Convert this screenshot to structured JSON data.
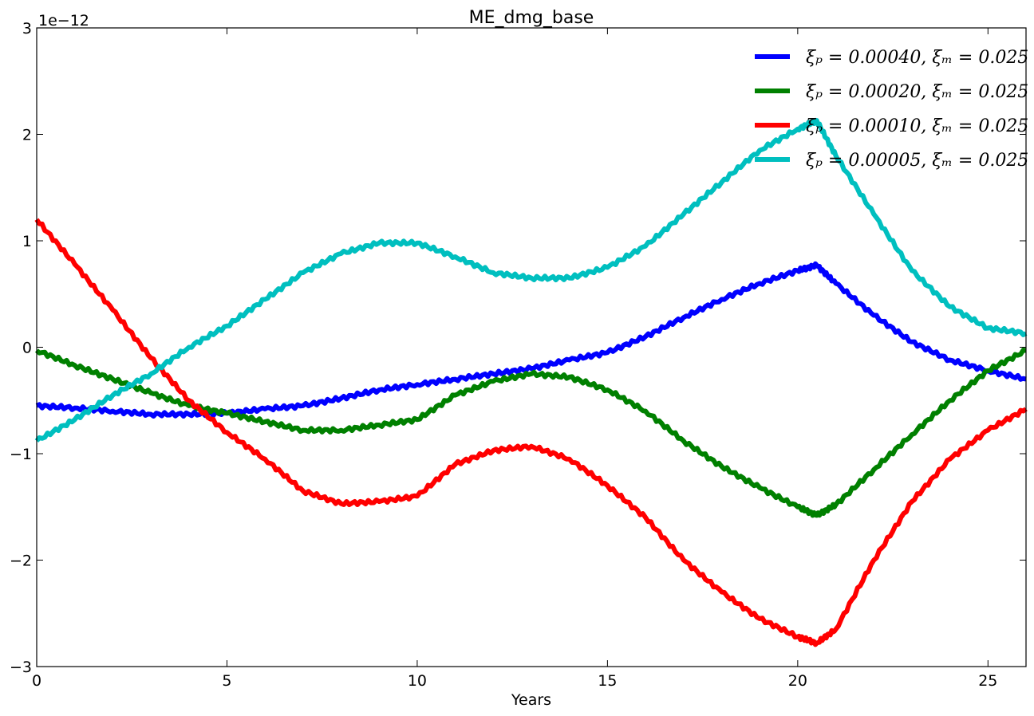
{
  "chart_data": {
    "type": "line",
    "title": "ME_dmg_base",
    "xlabel": "Years",
    "ylabel": "",
    "y_offset_text": "1e−12",
    "xlim": [
      0,
      26
    ],
    "ylim": [
      -3,
      3
    ],
    "xticks": [
      0,
      5,
      10,
      15,
      20,
      25
    ],
    "xtick_labels": [
      "0",
      "5",
      "10",
      "15",
      "20",
      "25"
    ],
    "yticks": [
      -3,
      -2,
      -1,
      0,
      1,
      2,
      3
    ],
    "ytick_labels": [
      "−3",
      "−2",
      "−1",
      "0",
      "1",
      "2",
      "3"
    ],
    "grid": false,
    "legend_position": "top-right",
    "series": [
      {
        "name": "ξₚ = 0.00040, ξₘ = 0.025",
        "color": "#0000ff",
        "x": [
          0,
          1,
          2,
          3,
          4,
          5,
          6,
          7,
          8,
          9,
          10,
          11,
          12,
          13,
          14,
          15,
          16,
          17,
          18,
          19,
          20,
          20.5,
          21,
          22,
          23,
          24,
          25,
          26
        ],
        "y": [
          -0.55,
          -0.57,
          -0.6,
          -0.63,
          -0.63,
          -0.62,
          -0.58,
          -0.55,
          -0.48,
          -0.4,
          -0.35,
          -0.3,
          -0.25,
          -0.2,
          -0.12,
          -0.05,
          0.1,
          0.28,
          0.45,
          0.6,
          0.72,
          0.77,
          0.6,
          0.3,
          0.05,
          -0.12,
          -0.22,
          -0.3
        ]
      },
      {
        "name": "ξₚ = 0.00020, ξₘ = 0.025",
        "color": "#008000",
        "x": [
          0,
          1,
          2,
          3,
          4,
          5,
          6,
          7,
          8,
          9,
          10,
          11,
          12,
          13,
          14,
          15,
          16,
          17,
          18,
          19,
          20,
          20.5,
          21,
          22,
          23,
          24,
          25,
          26
        ],
        "y": [
          -0.03,
          -0.17,
          -0.3,
          -0.43,
          -0.55,
          -0.62,
          -0.7,
          -0.78,
          -0.78,
          -0.73,
          -0.68,
          -0.45,
          -0.32,
          -0.25,
          -0.28,
          -0.4,
          -0.6,
          -0.88,
          -1.12,
          -1.32,
          -1.5,
          -1.58,
          -1.48,
          -1.15,
          -0.82,
          -0.5,
          -0.22,
          -0.03
        ]
      },
      {
        "name": "ξₚ = 0.00010, ξₘ = 0.025",
        "color": "#ff0000",
        "x": [
          0,
          1,
          2,
          3,
          4,
          5,
          6,
          7,
          8,
          9,
          10,
          11,
          12,
          13,
          14,
          15,
          16,
          17,
          18,
          19,
          20,
          20.5,
          21,
          22,
          23,
          24,
          25,
          26
        ],
        "y": [
          1.2,
          0.78,
          0.35,
          -0.1,
          -0.5,
          -0.8,
          -1.05,
          -1.35,
          -1.47,
          -1.45,
          -1.4,
          -1.1,
          -0.97,
          -0.93,
          -1.05,
          -1.3,
          -1.6,
          -2.0,
          -2.3,
          -2.55,
          -2.72,
          -2.78,
          -2.65,
          -2.0,
          -1.45,
          -1.05,
          -0.78,
          -0.58
        ]
      },
      {
        "name": "ξₚ = 0.00005, ξₘ = 0.025",
        "color": "#00bfbf",
        "x": [
          0,
          1,
          2,
          3,
          4,
          5,
          6,
          7,
          8,
          9,
          10,
          11,
          12,
          13,
          14,
          15,
          16,
          17,
          18,
          19,
          20,
          20.5,
          21,
          22,
          23,
          24,
          25,
          26
        ],
        "y": [
          -0.88,
          -0.68,
          -0.45,
          -0.25,
          0.0,
          0.2,
          0.45,
          0.7,
          0.88,
          0.98,
          0.98,
          0.85,
          0.7,
          0.65,
          0.65,
          0.75,
          0.95,
          1.25,
          1.55,
          1.85,
          2.05,
          2.13,
          1.8,
          1.25,
          0.72,
          0.38,
          0.18,
          0.13
        ]
      }
    ]
  }
}
